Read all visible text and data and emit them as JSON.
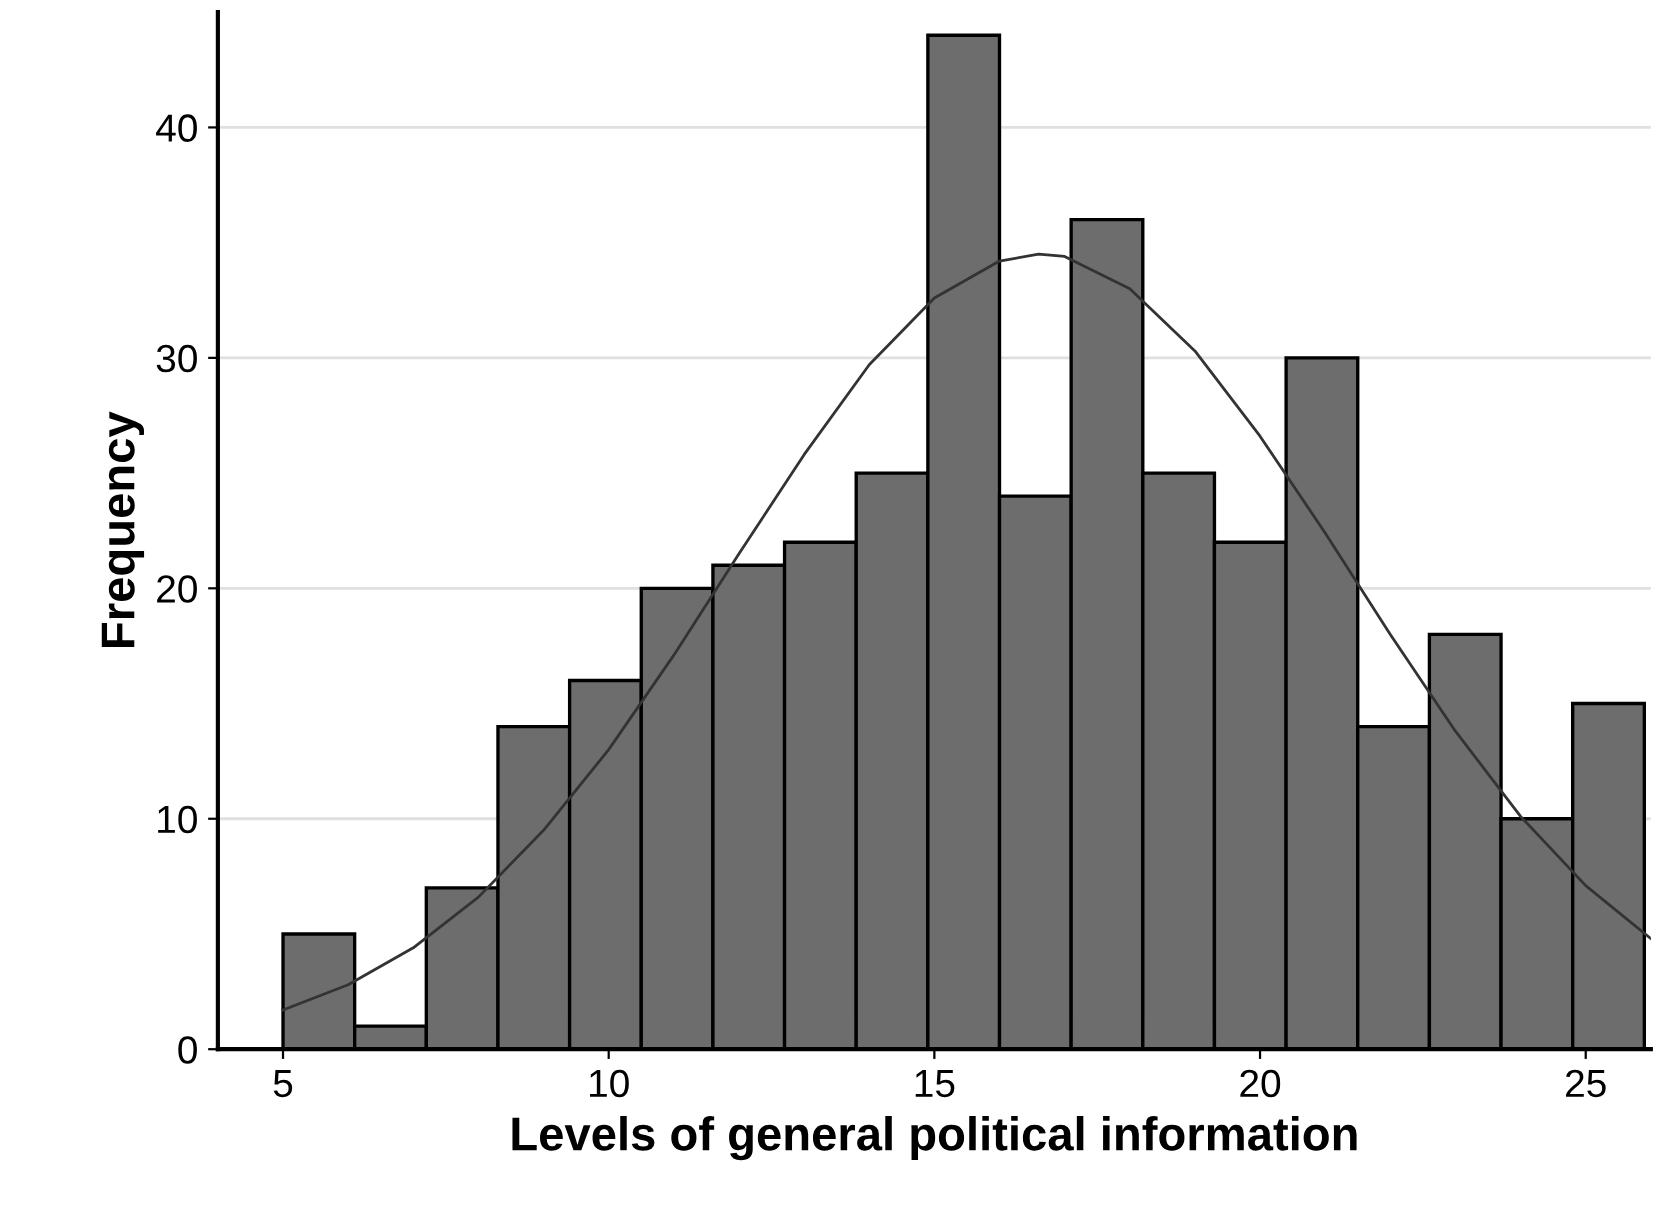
{
  "chart_data": {
    "type": "histogram",
    "xlabel": "Levels of general political information",
    "ylabel": "Frequency",
    "bins": [
      5,
      6.1,
      7.2,
      8.3,
      9.4,
      10.5,
      11.6,
      12.7,
      13.8,
      14.9,
      16,
      17.1,
      18.2,
      19.3,
      20.4,
      21.5,
      22.6,
      23.7,
      24.8,
      25.9
    ],
    "values": [
      5,
      1,
      7,
      14,
      16,
      20,
      21,
      22,
      25,
      44,
      24,
      36,
      25,
      22,
      30,
      14,
      18,
      10,
      15
    ],
    "color": "#6d6d6d",
    "series": [
      {
        "type": "line",
        "color": "#333333",
        "x": [
          5,
          6,
          7,
          8,
          9,
          10,
          11,
          12,
          13,
          14,
          15,
          16,
          16.6,
          17,
          18,
          19,
          20,
          21,
          22,
          23,
          24,
          25,
          26
        ],
        "values": [
          1.7,
          2.8,
          4.4,
          6.6,
          9.5,
          13,
          17.1,
          21.5,
          25.8,
          29.7,
          32.6,
          34.2,
          34.5,
          34.4,
          33,
          30.3,
          26.6,
          22.4,
          18,
          13.8,
          10.1,
          7.1,
          4.8
        ]
      }
    ],
    "xlim": [
      4,
      26
    ],
    "xticks": [
      5,
      10,
      15,
      20,
      25
    ],
    "ylim": [
      0,
      45
    ],
    "yticks": [
      0,
      10,
      20,
      30,
      40
    ],
    "grid": "y"
  }
}
